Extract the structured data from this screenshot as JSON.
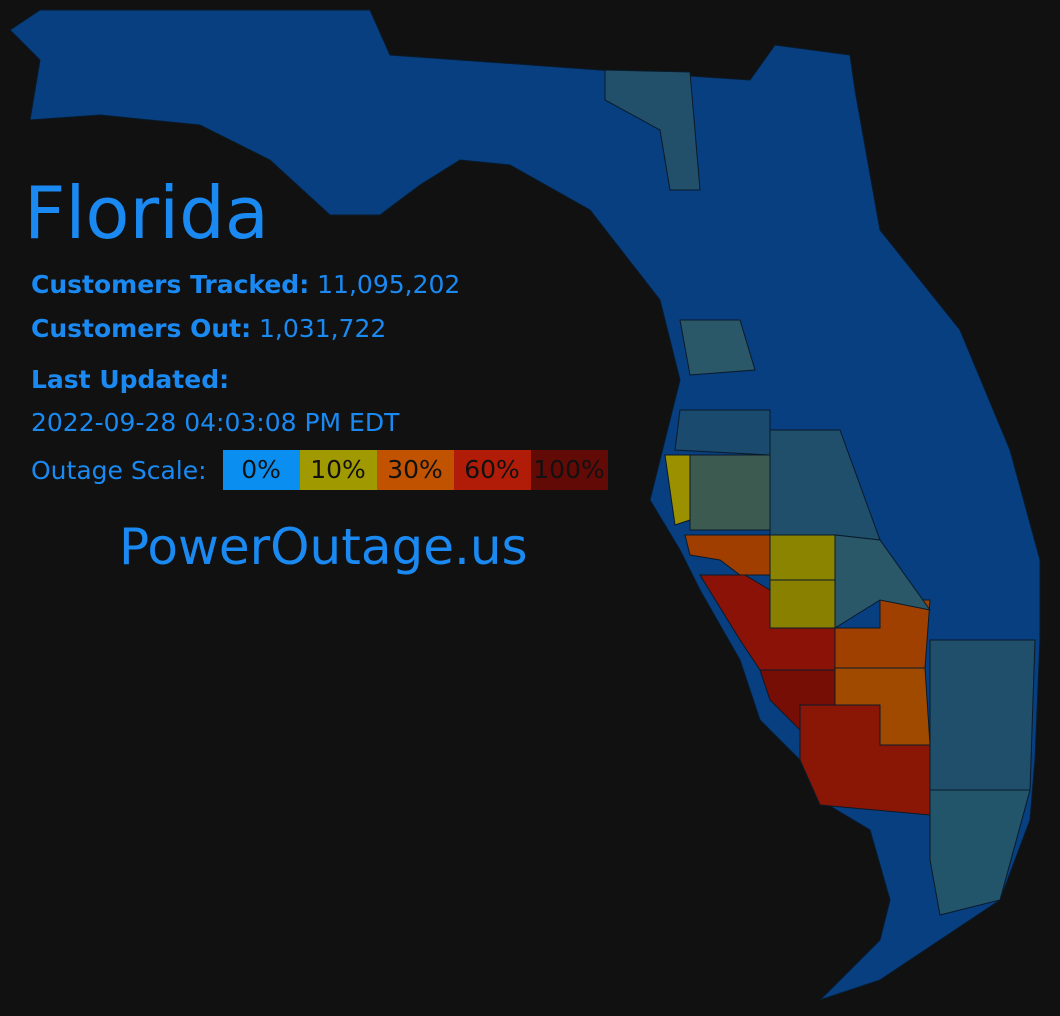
{
  "header": {
    "title": "Florida"
  },
  "stats": [
    {
      "label": "Customers Tracked:",
      "value": "11,095,202"
    },
    {
      "label": "Customers Out:",
      "value": "1,031,722"
    }
  ],
  "last_updated": {
    "label": "Last Updated:",
    "value": "2022-09-28 04:03:08 PM EDT"
  },
  "scale": {
    "label": "Outage Scale:",
    "items": [
      {
        "label": "0%",
        "color": "#0a8ef0"
      },
      {
        "label": "10%",
        "color": "#a09a00"
      },
      {
        "label": "30%",
        "color": "#c05200"
      },
      {
        "label": "60%",
        "color": "#b01c08"
      },
      {
        "label": "100%",
        "color": "#620a06"
      }
    ]
  },
  "footer": {
    "site": "PowerOutage.us"
  }
}
